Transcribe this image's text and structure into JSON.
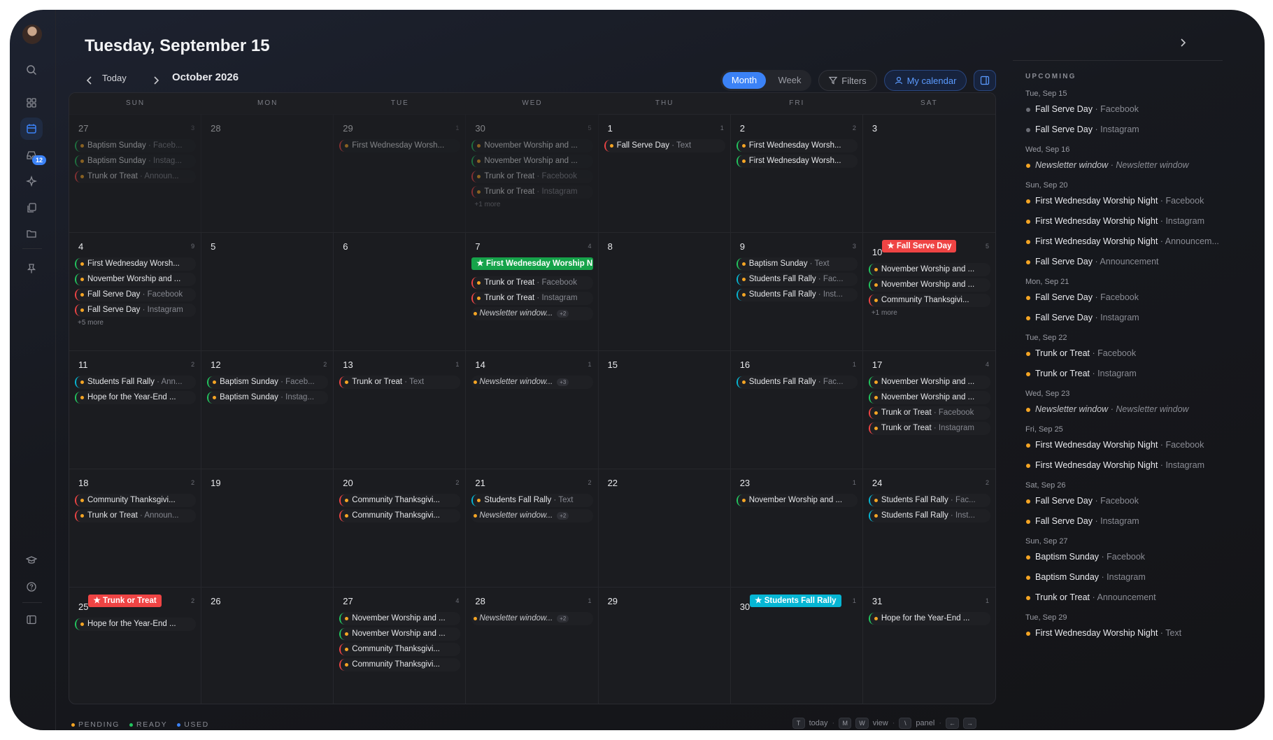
{
  "title": "Tuesday, September 15",
  "toolbar": {
    "today": "Today",
    "month_label": "October 2026",
    "views": [
      "Month",
      "Week"
    ],
    "filters": "Filters",
    "my_calendar": "My calendar"
  },
  "sidebar": {
    "inbox_badge": "12"
  },
  "calendar": {
    "weekdays": [
      "SUN",
      "MON",
      "TUE",
      "WED",
      "THU",
      "FRI",
      "SAT"
    ],
    "weeks": [
      [
        {
          "day": "27",
          "count": "3",
          "dim": true,
          "events": [
            {
              "t": "Baptism Sunday",
              "ch": "Faceb...",
              "c": "#22c55e"
            },
            {
              "t": "Baptism Sunday",
              "ch": "Instag...",
              "c": "#22c55e"
            },
            {
              "t": "Trunk or Treat",
              "ch": "Announ...",
              "c": "#ef4444"
            }
          ]
        },
        {
          "day": "28",
          "dim": true,
          "events": []
        },
        {
          "day": "29",
          "count": "1",
          "dim": true,
          "events": [
            {
              "t": "First Wednesday Worsh...",
              "c": "#ef4444"
            }
          ]
        },
        {
          "day": "30",
          "count": "5",
          "dim": true,
          "events": [
            {
              "t": "November Worship and ...",
              "c": "#22c55e"
            },
            {
              "t": "November Worship and ...",
              "c": "#22c55e"
            },
            {
              "t": "Trunk or Treat",
              "ch": "Facebook",
              "c": "#ef4444"
            },
            {
              "t": "Trunk or Treat",
              "ch": "Instagram",
              "c": "#ef4444"
            }
          ],
          "more": "+1 more"
        },
        {
          "day": "1",
          "count": "1",
          "events": [
            {
              "t": "Fall Serve Day",
              "ch": "Text",
              "c": "#ef4444"
            }
          ]
        },
        {
          "day": "2",
          "count": "2",
          "events": [
            {
              "t": "First Wednesday Worsh...",
              "c": "#22c55e"
            },
            {
              "t": "First Wednesday Worsh...",
              "c": "#22c55e"
            }
          ]
        },
        {
          "day": "3",
          "events": []
        }
      ],
      [
        {
          "day": "4",
          "count": "9",
          "events": [
            {
              "t": "First Wednesday Worsh...",
              "c": "#22c55e"
            },
            {
              "t": "November Worship and ...",
              "c": "#22c55e"
            },
            {
              "t": "Fall Serve Day",
              "ch": "Facebook",
              "c": "#ef4444"
            },
            {
              "t": "Fall Serve Day",
              "ch": "Instagram",
              "c": "#ef4444"
            }
          ],
          "more": "+5 more"
        },
        {
          "day": "5",
          "events": []
        },
        {
          "day": "6",
          "events": []
        },
        {
          "day": "7",
          "count": "4",
          "pill": {
            "t": "First Wednesday Worship N",
            "c": "#16a34a"
          },
          "events": [
            {
              "t": "Trunk or Treat",
              "ch": "Facebook",
              "c": "#ef4444"
            },
            {
              "t": "Trunk or Treat",
              "ch": "Instagram",
              "c": "#ef4444"
            },
            {
              "t": "Newsletter window...",
              "extra": "+2",
              "italic": true
            }
          ]
        },
        {
          "day": "8",
          "events": []
        },
        {
          "day": "9",
          "count": "3",
          "events": [
            {
              "t": "Baptism Sunday",
              "ch": "Text",
              "c": "#22c55e"
            },
            {
              "t": "Students Fall Rally",
              "ch": "Fac...",
              "c": "#06b6d4"
            },
            {
              "t": "Students Fall Rally",
              "ch": "Inst...",
              "c": "#06b6d4"
            }
          ]
        },
        {
          "day": "10",
          "count": "5",
          "pill": {
            "t": "Fall Serve Day",
            "c": "#ef4444"
          },
          "events": [
            {
              "t": "November Worship and ...",
              "c": "#22c55e"
            },
            {
              "t": "November Worship and ...",
              "c": "#22c55e"
            },
            {
              "t": "Community Thanksgivi...",
              "c": "#ef4444"
            }
          ],
          "more": "+1 more"
        }
      ],
      [
        {
          "day": "11",
          "count": "2",
          "events": [
            {
              "t": "Students Fall Rally",
              "ch": "Ann...",
              "c": "#06b6d4"
            },
            {
              "t": "Hope for the Year-End ...",
              "c": "#22c55e"
            }
          ]
        },
        {
          "day": "12",
          "count": "2",
          "events": [
            {
              "t": "Baptism Sunday",
              "ch": "Faceb...",
              "c": "#22c55e"
            },
            {
              "t": "Baptism Sunday",
              "ch": "Instag...",
              "c": "#22c55e"
            }
          ]
        },
        {
          "day": "13",
          "count": "1",
          "events": [
            {
              "t": "Trunk or Treat",
              "ch": "Text",
              "c": "#ef4444"
            }
          ]
        },
        {
          "day": "14",
          "count": "1",
          "events": [
            {
              "t": "Newsletter window...",
              "extra": "+3",
              "italic": true
            }
          ]
        },
        {
          "day": "15",
          "events": []
        },
        {
          "day": "16",
          "count": "1",
          "events": [
            {
              "t": "Students Fall Rally",
              "ch": "Fac...",
              "c": "#06b6d4"
            }
          ]
        },
        {
          "day": "17",
          "count": "4",
          "events": [
            {
              "t": "November Worship and ...",
              "c": "#22c55e"
            },
            {
              "t": "November Worship and ...",
              "c": "#22c55e"
            },
            {
              "t": "Trunk or Treat",
              "ch": "Facebook",
              "c": "#ef4444"
            },
            {
              "t": "Trunk or Treat",
              "ch": "Instagram",
              "c": "#ef4444"
            }
          ]
        }
      ],
      [
        {
          "day": "18",
          "count": "2",
          "events": [
            {
              "t": "Community Thanksgivi...",
              "c": "#ef4444"
            },
            {
              "t": "Trunk or Treat",
              "ch": "Announ...",
              "c": "#ef4444"
            }
          ]
        },
        {
          "day": "19",
          "events": []
        },
        {
          "day": "20",
          "count": "2",
          "events": [
            {
              "t": "Community Thanksgivi...",
              "c": "#ef4444"
            },
            {
              "t": "Community Thanksgivi...",
              "c": "#ef4444"
            }
          ]
        },
        {
          "day": "21",
          "count": "2",
          "events": [
            {
              "t": "Students Fall Rally",
              "ch": "Text",
              "c": "#06b6d4"
            },
            {
              "t": "Newsletter window...",
              "extra": "+2",
              "italic": true
            }
          ]
        },
        {
          "day": "22",
          "events": []
        },
        {
          "day": "23",
          "count": "1",
          "events": [
            {
              "t": "November Worship and ...",
              "c": "#22c55e"
            }
          ]
        },
        {
          "day": "24",
          "count": "2",
          "events": [
            {
              "t": "Students Fall Rally",
              "ch": "Fac...",
              "c": "#06b6d4"
            },
            {
              "t": "Students Fall Rally",
              "ch": "Inst...",
              "c": "#06b6d4"
            }
          ]
        }
      ],
      [
        {
          "day": "25",
          "count": "2",
          "pill": {
            "t": "Trunk or Treat",
            "c": "#ef4444"
          },
          "events": [
            {
              "t": "Hope for the Year-End ...",
              "c": "#22c55e"
            }
          ]
        },
        {
          "day": "26",
          "events": []
        },
        {
          "day": "27",
          "count": "4",
          "events": [
            {
              "t": "November Worship and ...",
              "c": "#22c55e"
            },
            {
              "t": "November Worship and ...",
              "c": "#22c55e"
            },
            {
              "t": "Community Thanksgivi...",
              "c": "#ef4444"
            },
            {
              "t": "Community Thanksgivi...",
              "c": "#ef4444"
            }
          ]
        },
        {
          "day": "28",
          "count": "1",
          "events": [
            {
              "t": "Newsletter window...",
              "extra": "+2",
              "italic": true
            }
          ]
        },
        {
          "day": "29",
          "events": []
        },
        {
          "day": "30",
          "count": "1",
          "pill": {
            "t": "Students Fall Rally",
            "c": "#06b6d4"
          },
          "events": []
        },
        {
          "day": "31",
          "count": "1",
          "events": [
            {
              "t": "Hope for the Year-End ...",
              "c": "#22c55e"
            }
          ]
        }
      ]
    ]
  },
  "legend": [
    {
      "label": "PENDING",
      "color": "#f5a524"
    },
    {
      "label": "READY",
      "color": "#22c55e"
    },
    {
      "label": "USED",
      "color": "#3b82f6"
    }
  ],
  "shortcuts": {
    "today_key": "T",
    "today_label": "today",
    "view_keys": [
      "M",
      "W"
    ],
    "view_label": "view",
    "panel_key": "\\",
    "panel_label": "panel",
    "prev_key": "←",
    "next_key": "→"
  },
  "upcoming": {
    "title": "UPCOMING",
    "groups": [
      {
        "date": "Tue, Sep 15",
        "items": [
          {
            "t": "Fall Serve Day",
            "ch": "Facebook",
            "dot": "#6b6d75"
          },
          {
            "t": "Fall Serve Day",
            "ch": "Instagram",
            "dot": "#6b6d75"
          }
        ]
      },
      {
        "date": "Wed, Sep 16",
        "items": [
          {
            "t": "Newsletter window",
            "ch": "Newsletter window",
            "italic": true
          }
        ]
      },
      {
        "date": "Sun, Sep 20",
        "items": [
          {
            "t": "First Wednesday Worship Night",
            "ch": "Facebook"
          },
          {
            "t": "First Wednesday Worship Night",
            "ch": "Instagram"
          },
          {
            "t": "First Wednesday Worship Night",
            "ch": "Announcem..."
          },
          {
            "t": "Fall Serve Day",
            "ch": "Announcement"
          }
        ]
      },
      {
        "date": "Mon, Sep 21",
        "items": [
          {
            "t": "Fall Serve Day",
            "ch": "Facebook"
          },
          {
            "t": "Fall Serve Day",
            "ch": "Instagram"
          }
        ]
      },
      {
        "date": "Tue, Sep 22",
        "items": [
          {
            "t": "Trunk or Treat",
            "ch": "Facebook"
          },
          {
            "t": "Trunk or Treat",
            "ch": "Instagram"
          }
        ]
      },
      {
        "date": "Wed, Sep 23",
        "items": [
          {
            "t": "Newsletter window",
            "ch": "Newsletter window",
            "italic": true
          }
        ]
      },
      {
        "date": "Fri, Sep 25",
        "items": [
          {
            "t": "First Wednesday Worship Night",
            "ch": "Facebook"
          },
          {
            "t": "First Wednesday Worship Night",
            "ch": "Instagram"
          }
        ]
      },
      {
        "date": "Sat, Sep 26",
        "items": [
          {
            "t": "Fall Serve Day",
            "ch": "Facebook"
          },
          {
            "t": "Fall Serve Day",
            "ch": "Instagram"
          }
        ]
      },
      {
        "date": "Sun, Sep 27",
        "items": [
          {
            "t": "Baptism Sunday",
            "ch": "Facebook"
          },
          {
            "t": "Baptism Sunday",
            "ch": "Instagram"
          },
          {
            "t": "Trunk or Treat",
            "ch": "Announcement"
          }
        ]
      },
      {
        "date": "Tue, Sep 29",
        "items": [
          {
            "t": "First Wednesday Worship Night",
            "ch": "Text"
          }
        ]
      }
    ]
  }
}
